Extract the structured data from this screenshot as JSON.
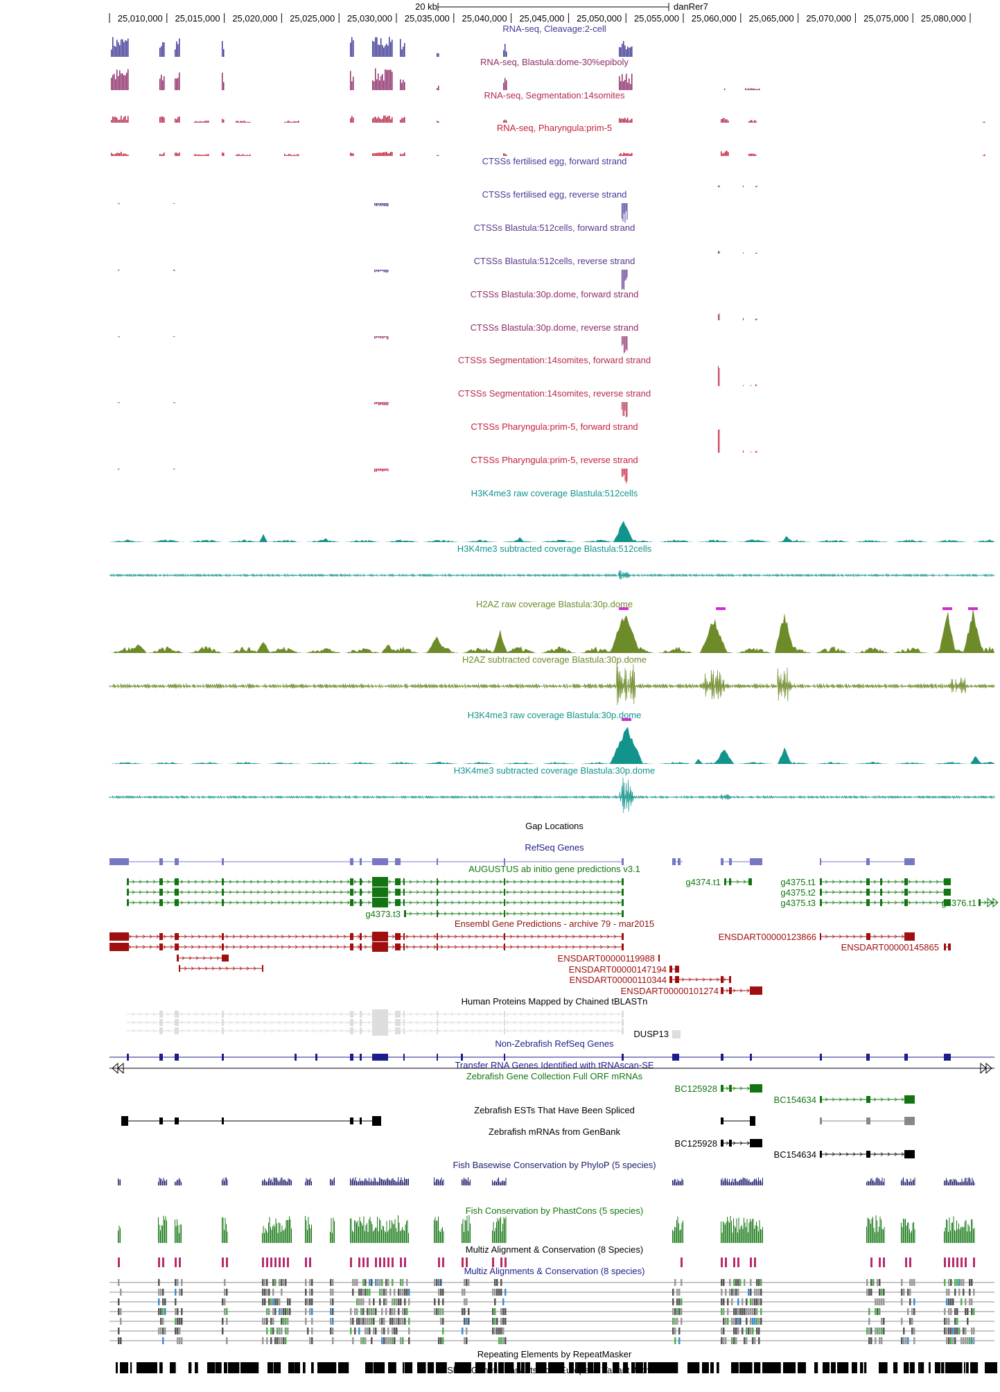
{
  "ruler": {
    "scale_label": "20 kb",
    "assembly": "danRer7",
    "ticks": [
      "25,010,000",
      "25,015,000",
      "25,020,000",
      "25,025,000",
      "25,030,000",
      "25,035,000",
      "25,040,000",
      "25,045,000",
      "25,050,000",
      "25,055,000",
      "25,060,000",
      "25,065,000",
      "25,070,000",
      "25,075,000",
      "25,080,000"
    ]
  },
  "tracks": [
    {
      "id": "rnaseq-cleavage",
      "label": "RNA-seq, Cleavage:2-cell",
      "color": "#3f3a96"
    },
    {
      "id": "rnaseq-blastula",
      "label": "RNA-seq, Blastula:dome-30%epiboly",
      "color": "#8e2d68"
    },
    {
      "id": "rnaseq-segmentation",
      "label": "RNA-seq, Segmentation:14somites",
      "color": "#b52a4a"
    },
    {
      "id": "rnaseq-pharyngula",
      "label": "RNA-seq, Pharyngula:prim-5",
      "color": "#c41f38"
    },
    {
      "id": "ctss-egg-fwd",
      "label": "CTSSs fertilised egg, forward strand",
      "color": "#3f3a96"
    },
    {
      "id": "ctss-egg-rev",
      "label": "CTSSs fertilised egg, reverse strand",
      "color": "#3f3a96"
    },
    {
      "id": "ctss-512-fwd",
      "label": "CTSSs Blastula:512cells, forward strand",
      "color": "#5b3588"
    },
    {
      "id": "ctss-512-rev",
      "label": "CTSSs Blastula:512cells, reverse strand",
      "color": "#5b3588"
    },
    {
      "id": "ctss-30p-fwd",
      "label": "CTSSs Blastula:30p.dome, forward strand",
      "color": "#8e2d68"
    },
    {
      "id": "ctss-30p-rev",
      "label": "CTSSs Blastula:30p.dome, reverse strand",
      "color": "#8e2d68"
    },
    {
      "id": "ctss-seg-fwd",
      "label": "CTSSs Segmentation:14somites, forward strand",
      "color": "#b52a4a"
    },
    {
      "id": "ctss-seg-rev",
      "label": "CTSSs Segmentation:14somites, reverse strand",
      "color": "#b52a4a"
    },
    {
      "id": "ctss-phar-fwd",
      "label": "CTSSs Pharyngula:prim-5, forward strand",
      "color": "#c41f38"
    },
    {
      "id": "ctss-phar-rev",
      "label": "CTSSs Pharyngula:prim-5, reverse strand",
      "color": "#c41f38"
    },
    {
      "id": "h3k4-512-raw",
      "label": "H3K4me3 raw coverage Blastula:512cells",
      "color": "#12938c"
    },
    {
      "id": "h3k4-512-sub",
      "label": "H3K4me3 subtracted coverage Blastula:512cells",
      "color": "#12938c"
    },
    {
      "id": "h2az-raw",
      "label": "H2AZ raw coverage Blastula:30p.dome",
      "color": "#6e8b2a"
    },
    {
      "id": "h2az-sub",
      "label": "H2AZ subtracted coverage Blastula:30p.dome",
      "color": "#6e8b2a"
    },
    {
      "id": "h3k4-30p-raw",
      "label": "H3K4me3 raw coverage Blastula:30p.dome",
      "color": "#12938c"
    },
    {
      "id": "h3k4-30p-sub",
      "label": "H3K4me3 subtracted coverage Blastula:30p.dome",
      "color": "#12938c"
    },
    {
      "id": "gap",
      "label": "Gap Locations",
      "color": "#000000"
    },
    {
      "id": "refseq",
      "label": "RefSeq Genes",
      "color": "#1c1c8c"
    },
    {
      "id": "augustus",
      "label": "AUGUSTUS ab initio gene predictions v3.1",
      "color": "#127512"
    },
    {
      "id": "ensembl",
      "label": "Ensembl Gene Predictions - archive 79 - mar2015",
      "color": "#8c0e0e"
    },
    {
      "id": "tblastn",
      "label": "Human Proteins Mapped by Chained tBLASTn",
      "color": "#000000"
    },
    {
      "id": "xeno-refseq",
      "label": "Non-Zebrafish RefSeq Genes",
      "color": "#1c1c8c"
    },
    {
      "id": "trna",
      "label": "Transfer RNA Genes Identified with tRNAscan-SE",
      "color": "#1c1c8c"
    },
    {
      "id": "zgc",
      "label": "Zebrafish Gene Collection Full ORF mRNAs",
      "color": "#127512"
    },
    {
      "id": "est",
      "label": "Zebrafish ESTs That Have Been Spliced",
      "color": "#000000"
    },
    {
      "id": "mrna",
      "label": "Zebrafish mRNAs from GenBank",
      "color": "#000000"
    },
    {
      "id": "phylop",
      "label": "Fish Basewise Conservation by PhyloP (5 species)",
      "color": "#1c1c6c"
    },
    {
      "id": "phastcons",
      "label": "Fish Conservation by PhastCons (5 species)",
      "color": "#127512"
    },
    {
      "id": "multiz8",
      "label": "Multiz Alignment & Conservation (8 Species)",
      "color": "#000000"
    },
    {
      "id": "multiz8b",
      "label": "Multiz Alignments & Conservation (8 species)",
      "color": "#1c1c8c"
    },
    {
      "id": "rmsk",
      "label": "Repeating Elements by RepeatMasker",
      "color": "#000000"
    },
    {
      "id": "eva",
      "label": "Short Genetic Variants from European Variant Archive",
      "color": "#000000"
    }
  ],
  "gene_labels": {
    "g4373": "g4373.t3",
    "g4374": "g4374.t1",
    "g4375a": "g4375.t1",
    "g4375b": "g4375.t2",
    "g4375c": "g4375.t3",
    "g4376": "g4376.t1",
    "ens123866": "ENSDART00000123866",
    "ens145865": "ENSDART00000145865",
    "ens119988": "ENSDART00000119988",
    "ens147194": "ENSDART00000147194",
    "ens110344": "ENSDART00000110344",
    "ens101274": "ENSDART00000101274",
    "dusp13": "DUSP13",
    "bc125928a": "BC125928",
    "bc154634a": "BC154634",
    "bc125928b": "BC125928",
    "bc154634b": "BC154634"
  },
  "colors": {
    "refseq_gene": "#7777c4",
    "augustus_gene": "#127512",
    "ensembl_gene": "#a00f0f",
    "tblastn_gene": "#dddddd",
    "xeno_gene": "#1c1c8c",
    "zgc_gene": "#127512",
    "est_gene": "#000000",
    "conservation_pink": "#b82a6e",
    "multiz_green": "#4fb04f",
    "multiz_blue": "#3d8ccf",
    "peak_tip": "#d02cd0"
  }
}
